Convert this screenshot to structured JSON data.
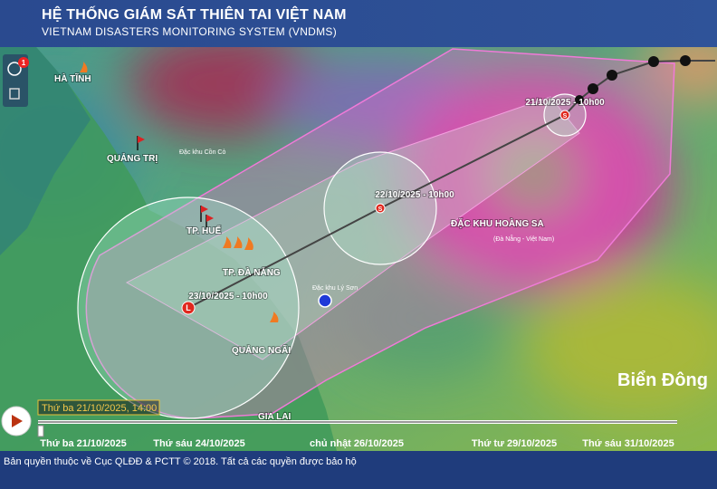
{
  "header": {
    "title": "HỆ THỐNG GIÁM SÁT THIÊN TAI VIỆT NAM",
    "subtitle": "VIETNAM DISASTERS MONITORING SYSTEM (VNDMS)"
  },
  "toolbar": {
    "badge": 1
  },
  "map_labels": [
    "HÀ TĨNH",
    "QUẢNG TRỊ",
    "Đặc khu Cồn Cỏ",
    "TP. HUẾ",
    "TP. ĐÀ NẴNG",
    "QUẢNG NGÃI",
    "GIA LAI",
    "ĐẶC KHU HOÀNG SA",
    "(Đà Nẵng - Việt Nam)",
    "Đặc khu Lý Sơn"
  ],
  "sea_label": "Biển Đông",
  "storm_track": [
    {
      "label": "21/10/2025 - 10h00",
      "symbol": "S"
    },
    {
      "label": "22/10/2025 - 10h00",
      "symbol": "S"
    },
    {
      "label": "23/10/2025 - 10h00",
      "symbol": "L"
    }
  ],
  "timeline": {
    "current": "Thứ ba 21/10/2025, 14:00",
    "ticks": [
      "Thứ ba 21/10/2025",
      "Thứ sáu 24/10/2025",
      "chủ nhật 26/10/2025",
      "Thứ tư 29/10/2025",
      "Thứ sáu 31/10/2025"
    ]
  },
  "footer": "Bản quyền thuộc về Cục QLĐĐ & PCTT © 2018. Tất cả các quyền được bảo hộ"
}
